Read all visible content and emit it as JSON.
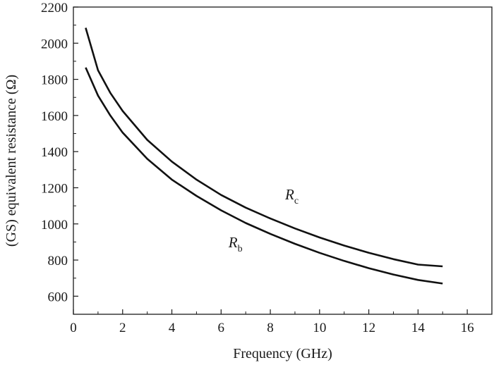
{
  "chart_data": {
    "type": "line",
    "title": "",
    "xlabel": "Frequency (GHz)",
    "ylabel": "(GS) equivalent resistance (Ω)",
    "xlim": [
      0,
      17
    ],
    "ylim": [
      500,
      2200
    ],
    "x_ticks": [
      0,
      2,
      4,
      6,
      8,
      10,
      12,
      14,
      16
    ],
    "y_ticks": [
      600,
      800,
      1000,
      1200,
      1400,
      1600,
      1800,
      2000,
      2200
    ],
    "grid": false,
    "line_color": "#111111",
    "series": [
      {
        "name": "Rc",
        "label_main": "R",
        "label_sub": "c",
        "x": [
          0.5,
          1,
          1.5,
          2,
          3,
          4,
          5,
          6,
          7,
          8,
          9,
          10,
          11,
          12,
          13,
          14,
          15
        ],
        "values": [
          2085,
          1850,
          1725,
          1625,
          1465,
          1345,
          1245,
          1160,
          1090,
          1030,
          975,
          925,
          880,
          840,
          805,
          775,
          765
        ]
      },
      {
        "name": "Rb",
        "label_main": "R",
        "label_sub": "b",
        "x": [
          0.5,
          1,
          1.5,
          2,
          3,
          4,
          5,
          6,
          7,
          8,
          9,
          10,
          11,
          12,
          13,
          14,
          15
        ],
        "values": [
          1865,
          1710,
          1600,
          1505,
          1360,
          1245,
          1155,
          1075,
          1005,
          945,
          890,
          840,
          795,
          755,
          720,
          690,
          670
        ]
      }
    ],
    "annotations": [
      {
        "series": "Rc",
        "x": 8.6,
        "y": 1135
      },
      {
        "series": "Rb",
        "x": 6.3,
        "y": 870
      }
    ]
  }
}
